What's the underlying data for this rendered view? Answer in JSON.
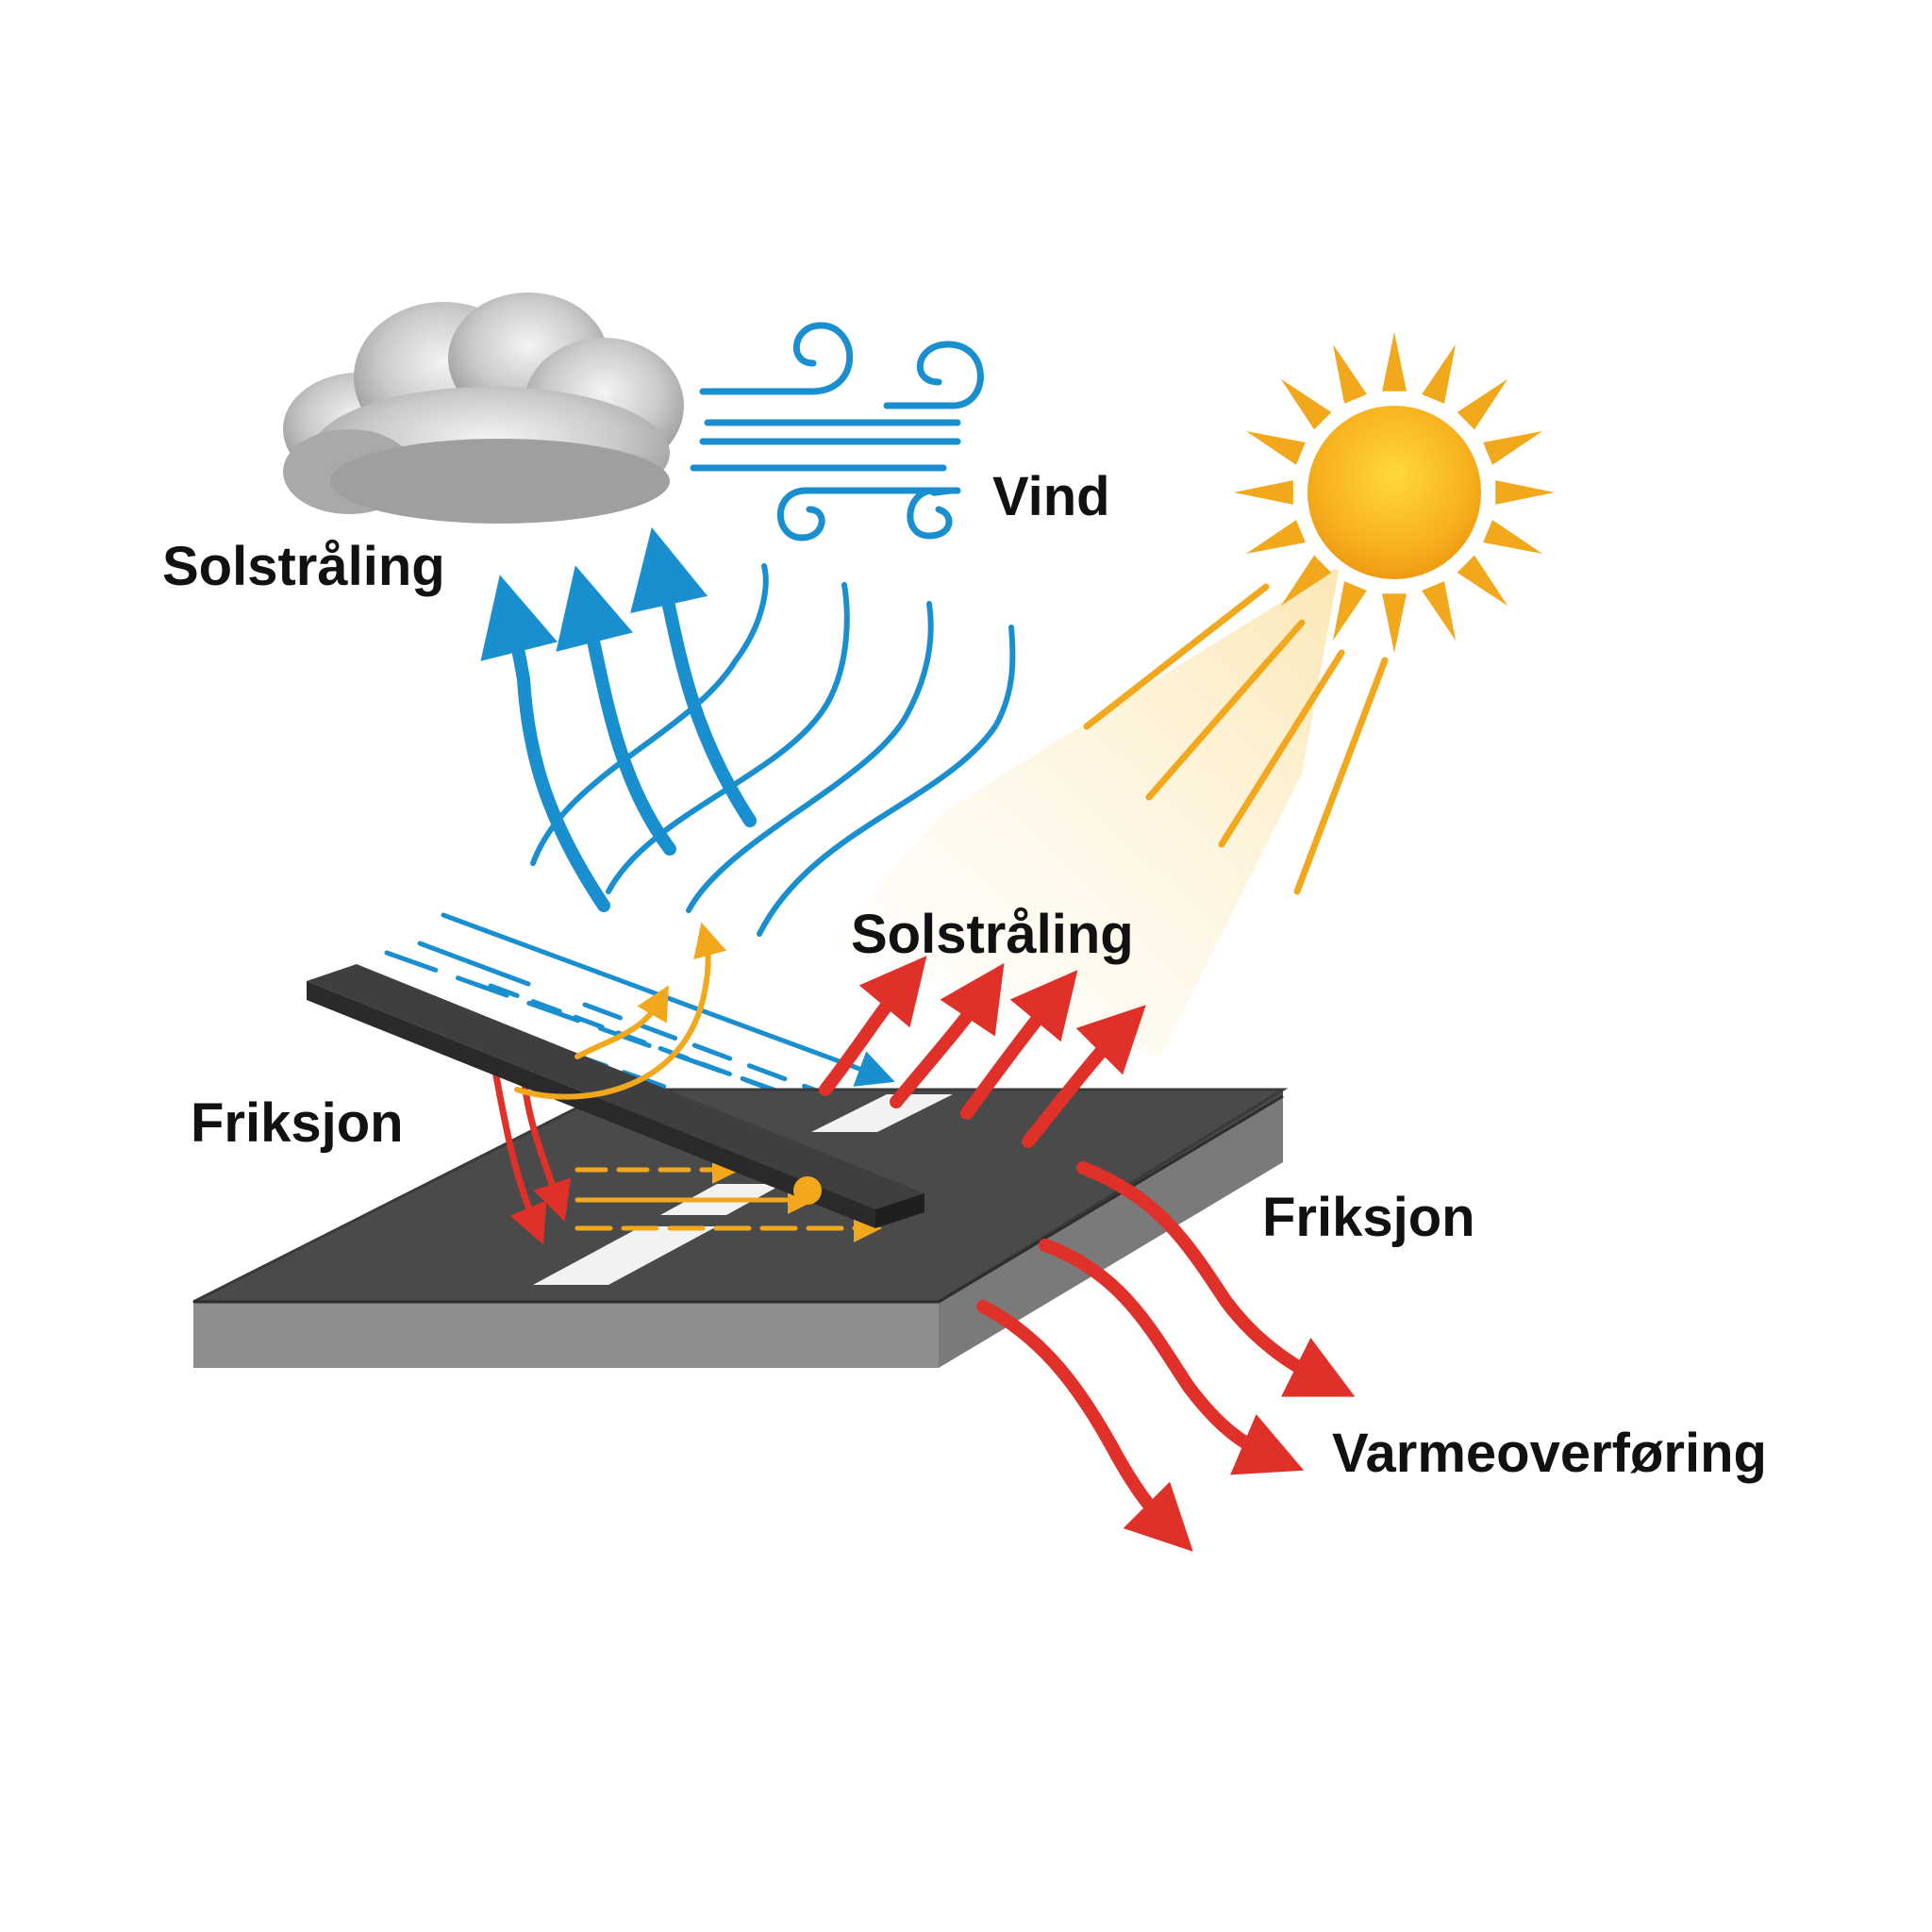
{
  "labels": {
    "solstraling_top": "Solstråling",
    "vind": "Vind",
    "solstraling_mid": "Solstråling",
    "friksjon_left": "Friksjon",
    "friksjon_right": "Friksjon",
    "varmeoverforing": "Varmeoverføring"
  },
  "icons": {
    "cloud": "cloud-icon",
    "wind": "wind-icon",
    "sun": "sun-icon"
  },
  "colors": {
    "wind_blue": "#1a8fd0",
    "heat_red": "#e0302a",
    "sun_orange": "#f2a81d",
    "sun_core": "#f7b21e",
    "road_top": "#4a4a4a",
    "road_side": "#8e8e8e",
    "rail": "#3f3f3f",
    "cloud_gray": "#b8b8b8",
    "text": "#111111"
  }
}
